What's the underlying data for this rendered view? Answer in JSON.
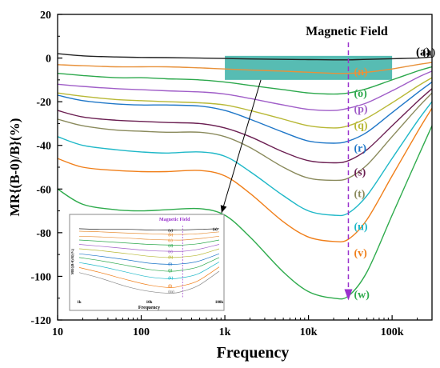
{
  "chart_data": {
    "type": "line",
    "xlabel": "Frequency",
    "ylabel": "MR{(B-0)/B}(%)",
    "xscale": "log",
    "xlim": [
      10,
      300000
    ],
    "ylim": [
      -120,
      20
    ],
    "x_ticks": [
      10,
      100,
      1000,
      10000,
      100000
    ],
    "x_tick_labels": [
      "10",
      "100",
      "1k",
      "10k",
      "100k"
    ],
    "y_ticks": [
      20,
      0,
      -20,
      -40,
      -60,
      -80,
      -100,
      -120
    ],
    "y_tick_labels": [
      "20",
      "0",
      "-20",
      "-40",
      "-60",
      "-80",
      "-100",
      "-120"
    ],
    "grid": false,
    "panel_label": "(a)",
    "annotation": {
      "text": "Magnetic Field",
      "x": 30000,
      "color": "#9a32cd"
    },
    "highlight_region": {
      "x_range": [
        1000,
        100000
      ],
      "y_range": [
        -10,
        1
      ],
      "color": "#1fa59a"
    },
    "x": [
      10,
      20,
      50,
      100,
      200,
      500,
      1000,
      2000,
      5000,
      10000,
      20000,
      30000,
      50000,
      100000,
      200000,
      300000
    ],
    "series": [
      {
        "name": "(a)",
        "label_x": 230000,
        "label_y": 3,
        "color": "#222222",
        "values": [
          2,
          1,
          0.5,
          0.3,
          0.2,
          0,
          -0.2,
          -0.4,
          -0.6,
          -0.7,
          -0.8,
          -0.8,
          -0.6,
          -0.3,
          0,
          0.5
        ]
      },
      {
        "name": "(n)",
        "label_x": 35000,
        "label_y": -6,
        "color": "#e8913a",
        "values": [
          -3,
          -3.5,
          -4,
          -4,
          -4,
          -4.5,
          -5,
          -5.5,
          -6,
          -6.5,
          -7,
          -7,
          -6.5,
          -5,
          -3,
          -2
        ]
      },
      {
        "name": "(o)",
        "label_x": 35000,
        "label_y": -16,
        "color": "#2ca84c",
        "values": [
          -7,
          -8,
          -9,
          -9,
          -9.5,
          -10,
          -11,
          -12.5,
          -14.5,
          -16,
          -16.5,
          -16,
          -14,
          -10,
          -6,
          -4
        ]
      },
      {
        "name": "(p)",
        "label_x": 35000,
        "label_y": -23,
        "color": "#a05ec8",
        "values": [
          -12,
          -13,
          -14,
          -14.5,
          -15,
          -15.5,
          -16.5,
          -18.5,
          -21.5,
          -23.5,
          -24,
          -23,
          -20.5,
          -15,
          -9,
          -6
        ]
      },
      {
        "name": "(q)",
        "label_x": 35000,
        "label_y": -30.5,
        "color": "#b8b836",
        "values": [
          -16,
          -17.5,
          -19,
          -19.5,
          -20,
          -20.5,
          -21.5,
          -24,
          -28,
          -31,
          -32,
          -31,
          -27.5,
          -20.5,
          -13,
          -9
        ]
      },
      {
        "name": "(r)",
        "label_x": 35000,
        "label_y": -41,
        "color": "#1f77c8",
        "values": [
          -17,
          -19.5,
          -21,
          -21.5,
          -21.5,
          -22,
          -24,
          -28,
          -34,
          -38,
          -39,
          -38,
          -34,
          -25,
          -16,
          -11
        ]
      },
      {
        "name": "(s)",
        "label_x": 35000,
        "label_y": -52,
        "color": "#6b1f52",
        "values": [
          -24,
          -27,
          -28.5,
          -29,
          -29.5,
          -30,
          -32,
          -36,
          -43,
          -47,
          -48,
          -47,
          -42,
          -31,
          -20,
          -14
        ]
      },
      {
        "name": "(t)",
        "label_x": 35000,
        "label_y": -62,
        "color": "#8a8a5c",
        "values": [
          -28,
          -31,
          -33,
          -33.5,
          -34,
          -34,
          -36,
          -41,
          -50,
          -55,
          -56,
          -55,
          -49,
          -36,
          -23,
          -16
        ]
      },
      {
        "name": "(u)",
        "label_x": 35000,
        "label_y": -77,
        "color": "#1fb8c8",
        "values": [
          -36,
          -40,
          -42,
          -43,
          -43.5,
          -43,
          -45,
          -52,
          -63,
          -70,
          -72,
          -71,
          -63,
          -46,
          -29,
          -20
        ]
      },
      {
        "name": "(v)",
        "label_x": 35000,
        "label_y": -89,
        "color": "#f07f1a",
        "values": [
          -46,
          -50,
          -51.5,
          -52,
          -52,
          -51.5,
          -54,
          -62,
          -75,
          -82,
          -84,
          -83,
          -74,
          -54,
          -34,
          -23
        ]
      },
      {
        "name": "(w)",
        "label_x": 35000,
        "label_y": -108,
        "color": "#2eab4c",
        "values": [
          -60,
          -67,
          -69.5,
          -70,
          -69.5,
          -69,
          -72,
          -82,
          -98,
          -107,
          -110,
          -109,
          -98,
          -72,
          -46,
          -31
        ]
      }
    ]
  },
  "inset": {
    "title": "Magnetic Field",
    "xlabel": "Frequency",
    "ylabel": "MR{(B-0)/B}(%)",
    "x_tick_labels": [
      "1k",
      "10k",
      "100k"
    ],
    "panel_label": "(a)",
    "x": [
      1000,
      2000,
      5000,
      10000,
      20000,
      30000,
      50000,
      100000
    ],
    "series": [
      {
        "name": "(a)",
        "color": "#222222",
        "values": [
          0,
          -0.1,
          -0.1,
          -0.2,
          -0.2,
          -0.2,
          -0.1,
          0
        ]
      },
      {
        "name": "(b)",
        "color": "#e8913a",
        "values": [
          -0.4,
          -0.5,
          -0.7,
          -0.8,
          -0.9,
          -0.9,
          -0.8,
          -0.5
        ]
      },
      {
        "name": "(c)",
        "color": "#e8913a",
        "values": [
          -1.2,
          -1.3,
          -1.5,
          -1.7,
          -1.8,
          -1.8,
          -1.6,
          -1.2
        ]
      },
      {
        "name": "(d)",
        "color": "#2ca84c",
        "values": [
          -1.8,
          -2,
          -2.3,
          -2.5,
          -2.6,
          -2.6,
          -2.4,
          -1.8
        ]
      },
      {
        "name": "(e)",
        "color": "#a05ec8",
        "values": [
          -2.5,
          -2.8,
          -3.2,
          -3.5,
          -3.6,
          -3.6,
          -3.3,
          -2.5
        ]
      },
      {
        "name": "(h)",
        "color": "#b8b836",
        "values": [
          -3.2,
          -3.5,
          -4,
          -4.4,
          -4.6,
          -4.5,
          -4.2,
          -3.2
        ]
      },
      {
        "name": "(i)",
        "color": "#1f77c8",
        "values": [
          -4,
          -4.4,
          -5,
          -5.5,
          -5.7,
          -5.6,
          -5.2,
          -4
        ]
      },
      {
        "name": "(j)",
        "color": "#2ca84c",
        "values": [
          -4.6,
          -5.1,
          -5.9,
          -6.5,
          -6.8,
          -6.6,
          -6.1,
          -4.6
        ]
      },
      {
        "name": "(k)",
        "color": "#1fb8c8",
        "values": [
          -5.4,
          -6,
          -7,
          -7.7,
          -8,
          -7.8,
          -7.2,
          -5.3
        ]
      },
      {
        "name": "(l)",
        "color": "#f07f1a",
        "values": [
          -6.2,
          -7,
          -8.2,
          -9,
          -9.4,
          -9.1,
          -8.3,
          -6.1
        ]
      },
      {
        "name": "(m)",
        "color": "#8a8a8a",
        "values": [
          -7,
          -7.9,
          -9.3,
          -10,
          -10.3,
          -10,
          -9.1,
          -6.8
        ]
      }
    ]
  }
}
